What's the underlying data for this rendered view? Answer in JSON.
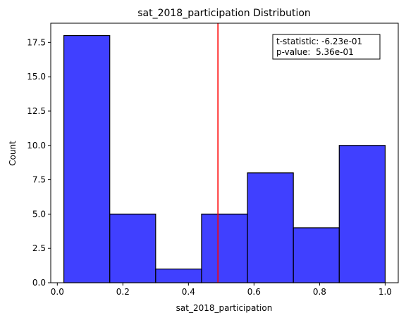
{
  "chart_data": {
    "type": "bar",
    "title": "sat_2018_participation Distribution",
    "xlabel": "sat_2018_participation",
    "ylabel": "Count",
    "xlim": [
      -0.02,
      1.04
    ],
    "ylim": [
      0,
      18.9
    ],
    "bins": [
      {
        "x0": 0.02,
        "x1": 0.16,
        "count": 18
      },
      {
        "x0": 0.16,
        "x1": 0.3,
        "count": 5
      },
      {
        "x0": 0.3,
        "x1": 0.44,
        "count": 1
      },
      {
        "x0": 0.44,
        "x1": 0.58,
        "count": 5
      },
      {
        "x0": 0.58,
        "x1": 0.72,
        "count": 8
      },
      {
        "x0": 0.72,
        "x1": 0.86,
        "count": 4
      },
      {
        "x0": 0.86,
        "x1": 1.0,
        "count": 10
      }
    ],
    "xticks": [
      {
        "value": 0.0,
        "label": "0.0"
      },
      {
        "value": 0.2,
        "label": "0.2"
      },
      {
        "value": 0.4,
        "label": "0.4"
      },
      {
        "value": 0.6,
        "label": "0.6"
      },
      {
        "value": 0.8,
        "label": "0.8"
      },
      {
        "value": 1.0,
        "label": "1.0"
      }
    ],
    "yticks": [
      {
        "value": 0.0,
        "label": "0.0"
      },
      {
        "value": 2.5,
        "label": "2.5"
      },
      {
        "value": 5.0,
        "label": "5.0"
      },
      {
        "value": 7.5,
        "label": "7.5"
      },
      {
        "value": 10.0,
        "label": "10.0"
      },
      {
        "value": 12.5,
        "label": "12.5"
      },
      {
        "value": 15.0,
        "label": "15.0"
      },
      {
        "value": 17.5,
        "label": "17.5"
      }
    ],
    "vline": {
      "x": 0.49,
      "color": "#ff0000"
    },
    "bar_color": "#0000ff",
    "bar_edge_color": "#000000",
    "annotation": {
      "line1": "t-statistic: -6.23e-01",
      "line2": "p-value:  5.36e-01"
    },
    "grid": false
  }
}
